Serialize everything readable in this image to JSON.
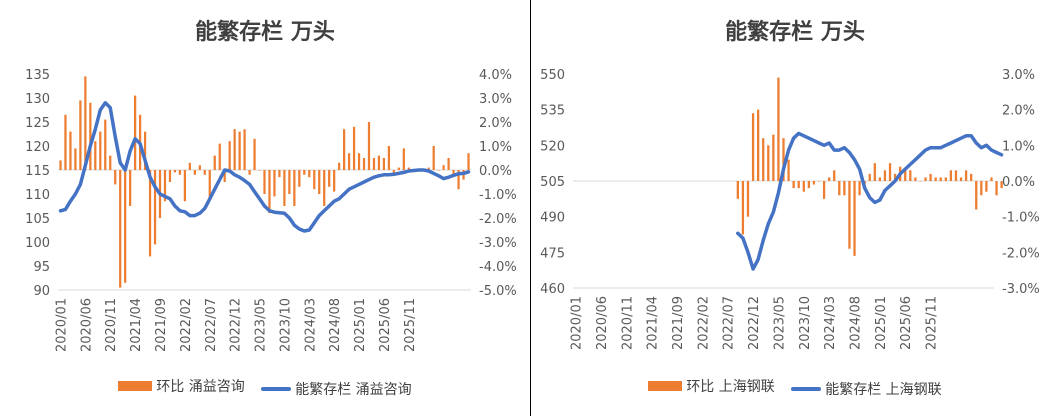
{
  "chart_data": [
    {
      "id": "left",
      "type": "bar+line",
      "title": "能繁存栏 万头",
      "legend": {
        "bar": "环比 涌益咨询",
        "line": "能繁存栏 涌益咨询"
      },
      "colors": {
        "bar": "#ED7D31",
        "line": "#4472C4",
        "axis": "#D9D9D9",
        "text": "#595959"
      },
      "x_labels": [
        "2020/01",
        "2020/06",
        "2020/11",
        "2021/04",
        "2021/09",
        "2022/02",
        "2022/07",
        "2022/12",
        "2023/05",
        "2023/10",
        "2024/03",
        "2024/08",
        "2025/01",
        "2025/06",
        "2025/11"
      ],
      "y_left": {
        "min": 90,
        "max": 135,
        "ticks": [
          90,
          95,
          100,
          105,
          110,
          115,
          120,
          125,
          130,
          135
        ]
      },
      "y_right": {
        "min": -5,
        "max": 4,
        "ticks": [
          -5,
          -4,
          -3,
          -2,
          -1,
          0,
          1,
          2,
          3,
          4
        ],
        "tick_labels": [
          "-5.0%",
          "-4.0%",
          "-3.0%",
          "-2.0%",
          "-1.0%",
          "0.0%",
          "1.0%",
          "2.0%",
          "3.0%",
          "4.0%"
        ]
      },
      "series": [
        {
          "name": "环比 涌益咨询",
          "kind": "bar",
          "axis": "right",
          "unit": "%",
          "values": [
            0.4,
            2.3,
            1.6,
            0.9,
            2.9,
            3.9,
            2.8,
            1.2,
            1.6,
            2.1,
            0.6,
            -0.6,
            -4.9,
            -4.7,
            -1.5,
            3.1,
            2.3,
            1.6,
            -3.6,
            -3.1,
            -2.0,
            -1.3,
            -0.5,
            -0.1,
            -0.2,
            -1.3,
            0.3,
            -0.2,
            0.2,
            -0.2,
            -1.2,
            0.6,
            1.1,
            -0.5,
            1.2,
            1.7,
            1.6,
            1.7,
            -0.2,
            1.3,
            0.0,
            -1.0,
            -1.8,
            -1.1,
            -0.3,
            -1.5,
            -1.0,
            -1.5,
            -0.7,
            -0.2,
            -0.3,
            -0.8,
            -1.0,
            -1.5,
            -0.7,
            -0.9,
            0.3,
            1.7,
            0.7,
            1.8,
            0.7,
            0.5,
            2.0,
            0.5,
            0.6,
            0.5,
            1.0,
            -0.2,
            0.1,
            0.9,
            0.1,
            0.0,
            0.0,
            0.0,
            0.1,
            1.0,
            0.0,
            0.2,
            0.5,
            -0.3,
            -0.8,
            -0.4,
            0.7
          ]
        },
        {
          "name": "能繁存栏 涌益咨询",
          "kind": "line",
          "axis": "left",
          "unit": "万头",
          "values": [
            106.5,
            106.8,
            108.5,
            110.0,
            112.0,
            116.0,
            120.0,
            123.5,
            127.5,
            129.0,
            128.0,
            122.0,
            116.5,
            115.0,
            119.0,
            121.5,
            120.5,
            117.0,
            113.5,
            111.5,
            110.0,
            109.5,
            109.0,
            107.5,
            106.5,
            106.3,
            105.5,
            105.5,
            106.0,
            107.0,
            109.0,
            111.0,
            113.0,
            115.0,
            114.8,
            114.0,
            113.5,
            112.8,
            112.0,
            110.5,
            109.0,
            107.5,
            106.5,
            106.2,
            106.1,
            106.0,
            105.0,
            103.5,
            102.7,
            102.3,
            102.5,
            104.0,
            105.5,
            106.5,
            107.5,
            108.5,
            109.0,
            110.0,
            111.0,
            111.5,
            112.0,
            112.5,
            113.0,
            113.5,
            113.8,
            114.0,
            114.0,
            114.1,
            114.3,
            114.5,
            114.8,
            114.9,
            115.0,
            115.0,
            114.8,
            114.3,
            113.8,
            113.2,
            113.5,
            113.9,
            114.2,
            114.3,
            114.6
          ]
        }
      ]
    },
    {
      "id": "right",
      "type": "bar+line",
      "title": "能繁存栏 万头",
      "legend": {
        "bar": "环比 上海钢联",
        "line": "能繁存栏 上海钢联"
      },
      "colors": {
        "bar": "#ED7D31",
        "line": "#4472C4",
        "axis": "#D9D9D9",
        "text": "#595959"
      },
      "x_labels": [
        "2020/01",
        "2020/06",
        "2020/11",
        "2021/04",
        "2021/09",
        "2022/02",
        "2022/07",
        "2022/12",
        "2023/05",
        "2023/10",
        "2024/03",
        "2024/08",
        "2025/01",
        "2025/06",
        "2025/11"
      ],
      "y_left": {
        "min": 460,
        "max": 550,
        "ticks": [
          460,
          475,
          490,
          505,
          520,
          535,
          550
        ]
      },
      "y_right": {
        "min": -3,
        "max": 3,
        "ticks": [
          -3,
          -2,
          -1,
          0,
          1,
          2,
          3
        ],
        "tick_labels": [
          "-3.0%",
          "-2.0%",
          "-1.0%",
          "0.0%",
          "1.0%",
          "2.0%",
          "3.0%"
        ]
      },
      "series": [
        {
          "name": "环比 上海钢联",
          "kind": "bar",
          "axis": "right",
          "unit": "%",
          "start_index": 32,
          "values": [
            -0.5,
            -1.5,
            -1.0,
            1.9,
            2.0,
            1.2,
            1.0,
            1.3,
            2.9,
            1.2,
            0.6,
            -0.2,
            -0.2,
            -0.3,
            -0.2,
            -0.1,
            0.0,
            -0.5,
            0.1,
            0.3,
            -0.4,
            -0.4,
            -1.9,
            -2.1,
            -0.4,
            -0.1,
            0.2,
            0.5,
            0.1,
            0.3,
            0.5,
            0.2,
            0.4,
            0.3,
            0.3,
            0.1,
            0.0,
            0.1,
            0.2,
            0.1,
            0.1,
            0.1,
            0.3,
            0.3,
            0.1,
            0.3,
            0.2,
            -0.8,
            -0.4,
            -0.3,
            0.1,
            -0.4,
            -0.2
          ]
        },
        {
          "name": "能繁存栏 上海钢联",
          "kind": "line",
          "axis": "left",
          "unit": "万头",
          "start_index": 32,
          "values": [
            483,
            481,
            475,
            468,
            472,
            480,
            487,
            492,
            500,
            510,
            518,
            523,
            525,
            524,
            523,
            522,
            521,
            520,
            521,
            518,
            518,
            519,
            517,
            514,
            510,
            502,
            498,
            496,
            497,
            501,
            503,
            505,
            508,
            510,
            512,
            514,
            516,
            518,
            519,
            519,
            519,
            520,
            521,
            522,
            523,
            524,
            524,
            521,
            519,
            520,
            518,
            517,
            516
          ]
        }
      ]
    }
  ]
}
